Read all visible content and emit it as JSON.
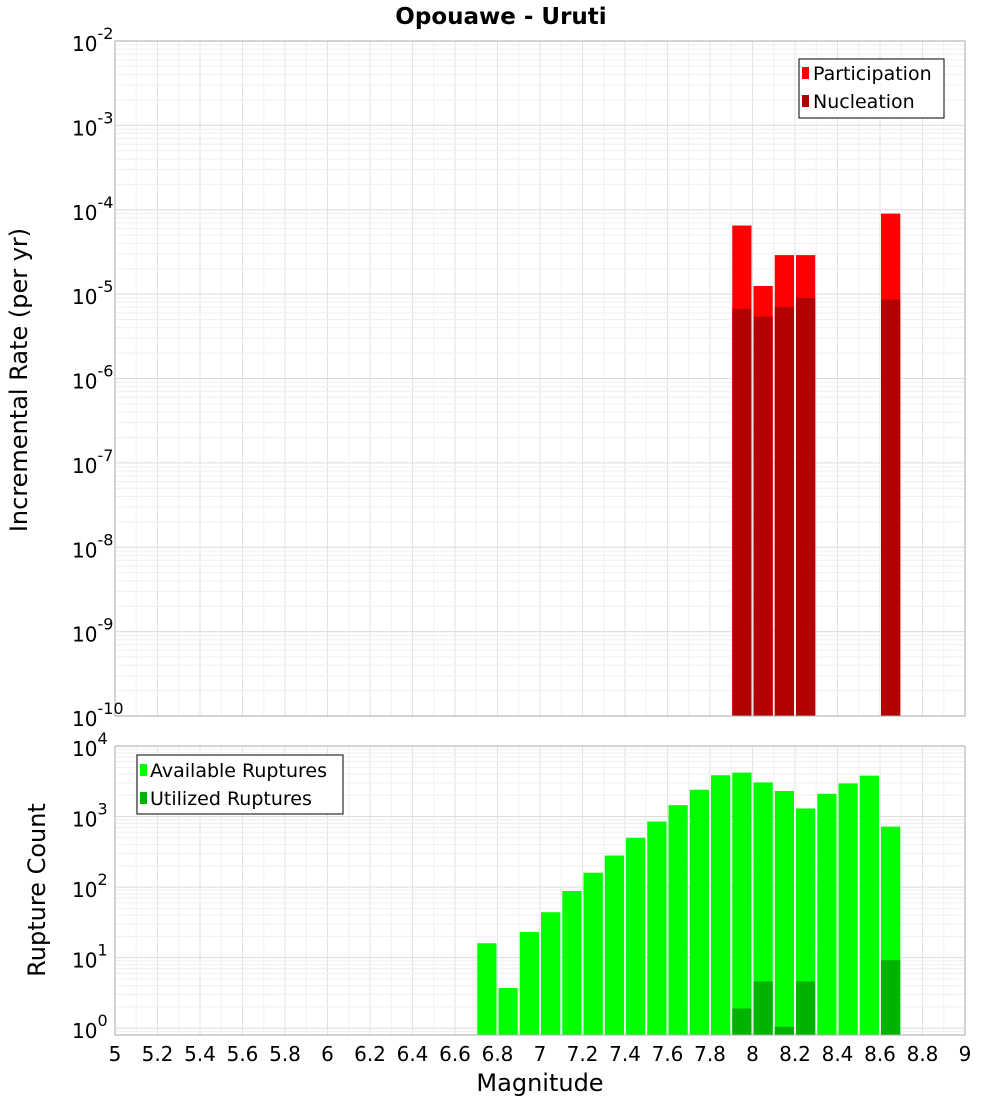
{
  "chart_data": [
    {
      "type": "bar",
      "title": "Opouawe - Uruti",
      "ylabel": "Incremental Rate (per yr)",
      "yscale": "log",
      "ylim": [
        1e-10,
        0.01
      ],
      "xlim": [
        5,
        9
      ],
      "bar_width": 0.1,
      "grid": true,
      "legend_placement": "top-right",
      "series": [
        {
          "name": "Participation",
          "color": "#ff0000",
          "points": [
            {
              "x": 7.95,
              "y": 6.5e-05
            },
            {
              "x": 8.05,
              "y": 1.25e-05
            },
            {
              "x": 8.15,
              "y": 2.9e-05
            },
            {
              "x": 8.25,
              "y": 2.9e-05
            },
            {
              "x": 8.65,
              "y": 9e-05
            }
          ]
        },
        {
          "name": "Nucleation",
          "color": "#b30000",
          "points": [
            {
              "x": 7.95,
              "y": 6.7e-06
            },
            {
              "x": 8.05,
              "y": 5.4e-06
            },
            {
              "x": 8.15,
              "y": 7e-06
            },
            {
              "x": 8.25,
              "y": 9e-06
            },
            {
              "x": 8.65,
              "y": 8.6e-06
            }
          ]
        }
      ],
      "yticks": [
        {
          "base": "10",
          "exp": "-2"
        },
        {
          "base": "10",
          "exp": "-3"
        },
        {
          "base": "10",
          "exp": "-4"
        },
        {
          "base": "10",
          "exp": "-5"
        },
        {
          "base": "10",
          "exp": "-6"
        },
        {
          "base": "10",
          "exp": "-7"
        },
        {
          "base": "10",
          "exp": "-8"
        },
        {
          "base": "10",
          "exp": "-9"
        },
        {
          "base": "10",
          "exp": "-10"
        }
      ]
    },
    {
      "type": "bar",
      "xlabel": "Magnitude",
      "ylabel": "Rupture Count",
      "yscale": "log",
      "ylim": [
        0.8,
        10000
      ],
      "xlim": [
        5,
        9
      ],
      "bar_width": 0.1,
      "grid": true,
      "legend_placement": "top-left",
      "series": [
        {
          "name": "Available Ruptures",
          "color": "#00ff00",
          "points": [
            {
              "x": 6.75,
              "y": 16
            },
            {
              "x": 6.85,
              "y": 3.7
            },
            {
              "x": 6.95,
              "y": 23
            },
            {
              "x": 7.05,
              "y": 44
            },
            {
              "x": 7.15,
              "y": 88
            },
            {
              "x": 7.25,
              "y": 160
            },
            {
              "x": 7.35,
              "y": 280
            },
            {
              "x": 7.45,
              "y": 500
            },
            {
              "x": 7.55,
              "y": 850
            },
            {
              "x": 7.65,
              "y": 1450
            },
            {
              "x": 7.75,
              "y": 2400
            },
            {
              "x": 7.85,
              "y": 3850
            },
            {
              "x": 7.95,
              "y": 4200
            },
            {
              "x": 8.05,
              "y": 3050
            },
            {
              "x": 8.15,
              "y": 2300
            },
            {
              "x": 8.25,
              "y": 1300
            },
            {
              "x": 8.35,
              "y": 2100
            },
            {
              "x": 8.45,
              "y": 2950
            },
            {
              "x": 8.55,
              "y": 3800
            },
            {
              "x": 8.65,
              "y": 720
            }
          ]
        },
        {
          "name": "Utilized Ruptures",
          "color": "#00b300",
          "points": [
            {
              "x": 7.95,
              "y": 1.9
            },
            {
              "x": 8.05,
              "y": 4.6
            },
            {
              "x": 8.15,
              "y": 1.05
            },
            {
              "x": 8.25,
              "y": 4.6
            },
            {
              "x": 8.65,
              "y": 9.2
            }
          ]
        }
      ],
      "yticks": [
        {
          "base": "10",
          "exp": "4"
        },
        {
          "base": "10",
          "exp": "3"
        },
        {
          "base": "10",
          "exp": "2"
        },
        {
          "base": "10",
          "exp": "1"
        },
        {
          "base": "10",
          "exp": "0"
        }
      ],
      "xticks": [
        "5",
        "5.2",
        "5.4",
        "5.6",
        "5.8",
        "6",
        "6.2",
        "6.4",
        "6.6",
        "6.8",
        "7",
        "7.2",
        "7.4",
        "7.6",
        "7.8",
        "8",
        "8.2",
        "8.4",
        "8.6",
        "8.8",
        "9"
      ]
    }
  ]
}
